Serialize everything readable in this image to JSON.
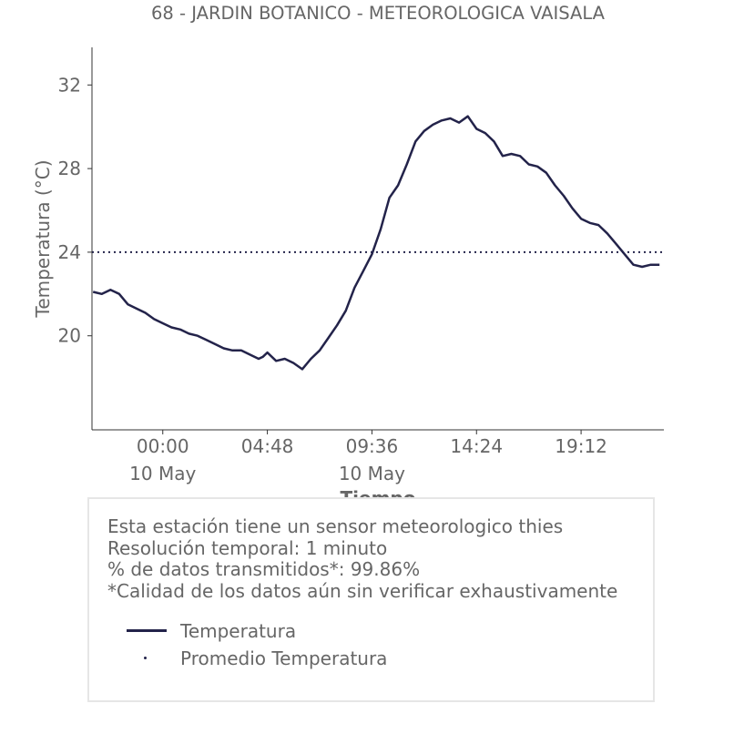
{
  "chart_data": {
    "type": "line",
    "title": "68 - JARDIN BOTANICO - METEOROLOGICA VAISALA",
    "xlabel": "Tiempo",
    "ylabel": "Temperatura (°C)",
    "ylim": [
      15.5,
      33.8
    ],
    "xlim": [
      -3.25,
      23.0
    ],
    "y_ticks": [
      20,
      24,
      28,
      32
    ],
    "x_ticks": [
      {
        "value": 0.0,
        "label": "00:00",
        "sublabel": "10 May"
      },
      {
        "value": 4.8,
        "label": "04:48",
        "sublabel": ""
      },
      {
        "value": 9.6,
        "label": "09:36",
        "sublabel": "10 May"
      },
      {
        "value": 14.4,
        "label": "14:24",
        "sublabel": ""
      },
      {
        "value": 19.2,
        "label": "19:12",
        "sublabel": ""
      }
    ],
    "x_units": "hours from 00:00 10 May",
    "grid": false,
    "series": [
      {
        "name": "Temperatura",
        "color": "#23234a",
        "style": "solid",
        "x": [
          -3.2,
          -2.8,
          -2.4,
          -2.0,
          -1.6,
          -1.2,
          -0.8,
          -0.4,
          0.0,
          0.4,
          0.8,
          1.2,
          1.6,
          2.0,
          2.4,
          2.8,
          3.2,
          3.6,
          4.0,
          4.4,
          4.6,
          4.8,
          5.2,
          5.6,
          6.0,
          6.4,
          6.8,
          7.2,
          7.6,
          8.0,
          8.4,
          8.8,
          9.2,
          9.6,
          10.0,
          10.4,
          10.8,
          11.2,
          11.6,
          12.0,
          12.4,
          12.8,
          13.2,
          13.6,
          14.0,
          14.4,
          14.8,
          15.2,
          15.6,
          16.0,
          16.4,
          16.8,
          17.2,
          17.6,
          18.0,
          18.4,
          18.8,
          19.2,
          19.6,
          20.0,
          20.4,
          20.8,
          21.2,
          21.6,
          22.0,
          22.4,
          22.8
        ],
        "y": [
          22.1,
          22.0,
          22.2,
          22.0,
          21.5,
          21.3,
          21.1,
          20.8,
          20.6,
          20.4,
          20.3,
          20.1,
          20.0,
          19.8,
          19.6,
          19.4,
          19.3,
          19.3,
          19.1,
          18.9,
          19.0,
          19.2,
          18.8,
          18.9,
          18.7,
          18.4,
          18.9,
          19.3,
          19.9,
          20.5,
          21.2,
          22.3,
          23.1,
          23.9,
          25.1,
          26.6,
          27.2,
          28.2,
          29.3,
          29.8,
          30.1,
          30.3,
          30.4,
          30.2,
          30.5,
          29.9,
          29.7,
          29.3,
          28.6,
          28.7,
          28.6,
          28.2,
          28.1,
          27.8,
          27.2,
          26.7,
          26.1,
          25.6,
          25.4,
          25.3,
          24.9,
          24.4,
          23.9,
          23.4,
          23.3,
          23.4,
          23.4
        ]
      },
      {
        "name": "Promedio Temperatura",
        "color": "#23234a",
        "style": "dotted",
        "x": [
          -3.25,
          23.0
        ],
        "y": [
          24.0,
          24.0
        ]
      }
    ],
    "legend_position": "bottom"
  },
  "info": {
    "lines": [
      "Esta estación tiene un sensor meteorologico thies",
      "Resolución temporal: 1 minuto",
      "% de datos transmitidos*: 99.86%",
      "*Calidad de los datos aún sin verificar exhaustivamente"
    ]
  }
}
